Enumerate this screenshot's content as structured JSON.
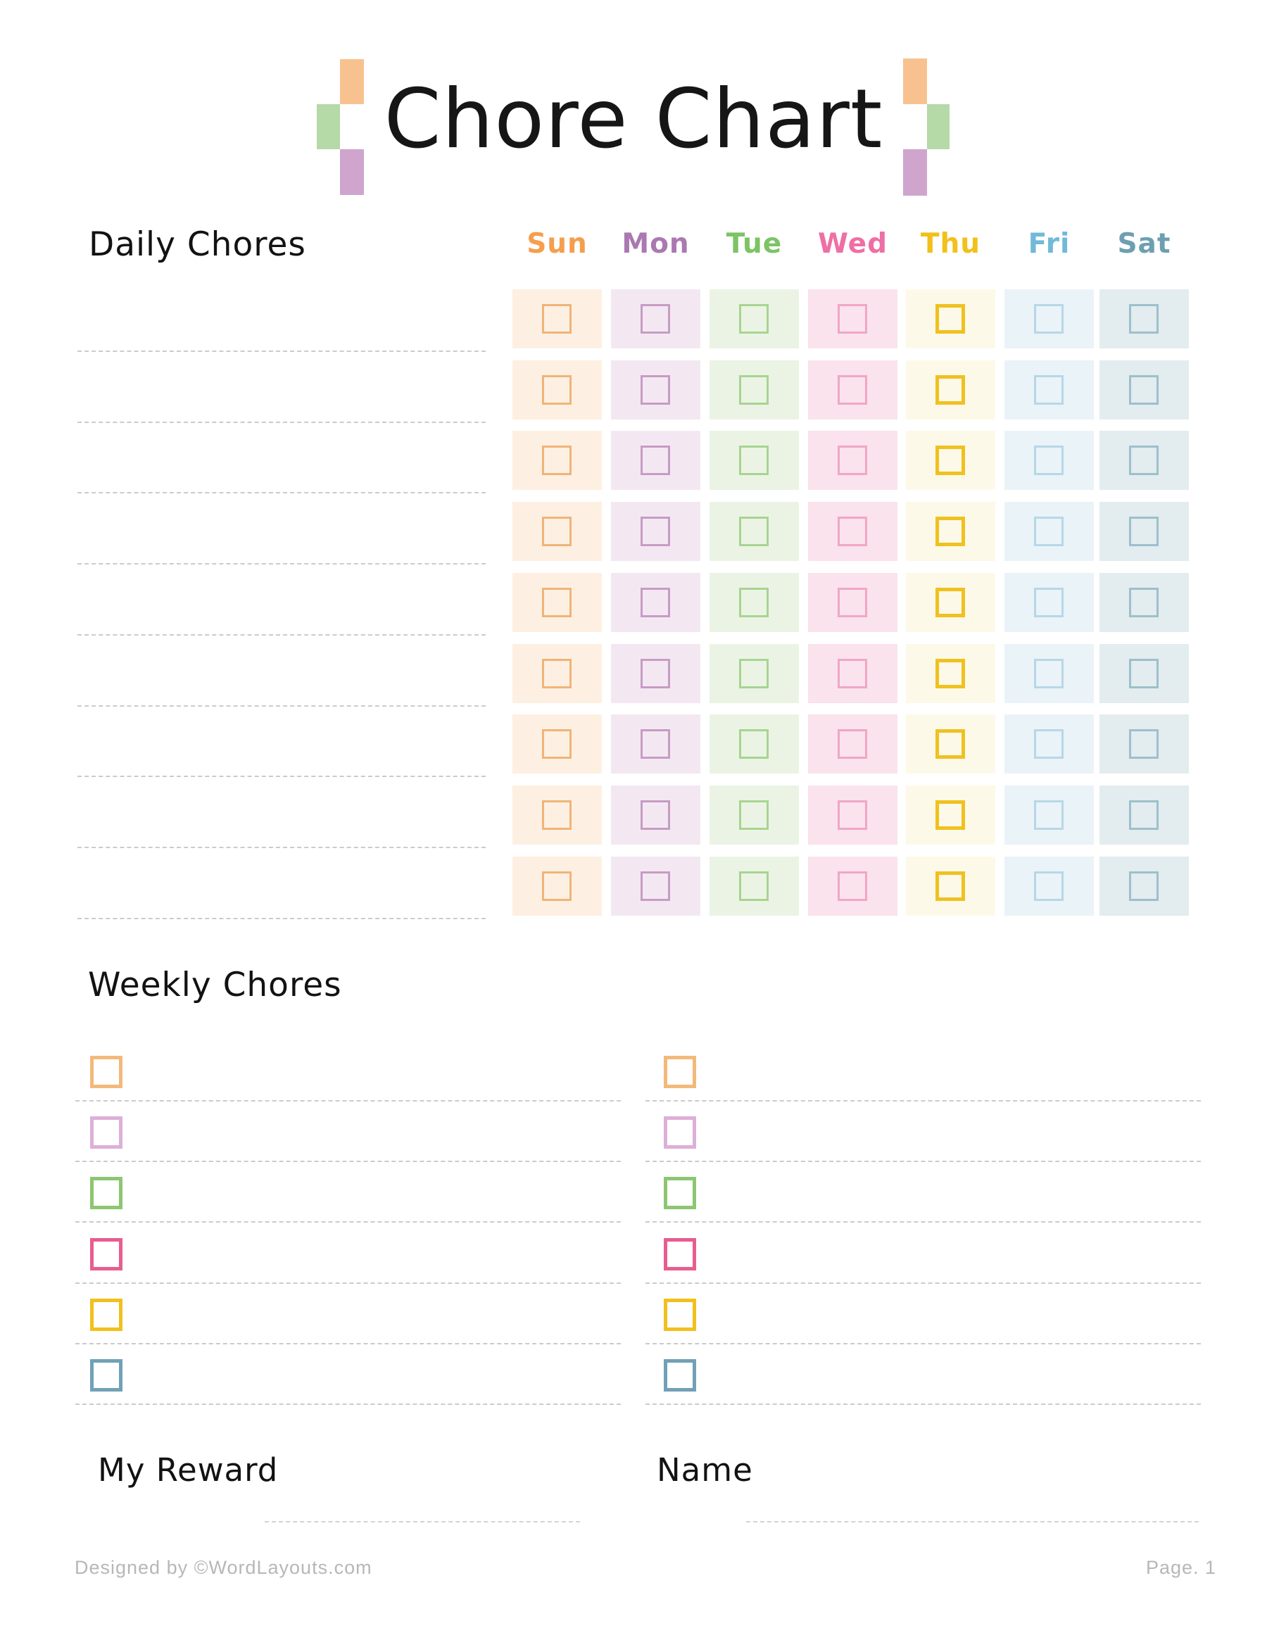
{
  "title": {
    "text": "Chore Chart"
  },
  "decoration": {
    "orange": "#f7c28f",
    "green": "#b5d9a7",
    "purple": "#cfa5cd"
  },
  "daily": {
    "heading": "Daily Chores",
    "num_blank_lines": 9,
    "num_rows": 9,
    "days": [
      {
        "label": "Sun",
        "label_color": "#f59e4e",
        "cell_bg": "#fdf0e2",
        "box_color": "#f0b478",
        "bold_box": false
      },
      {
        "label": "Mon",
        "label_color": "#aa79b1",
        "cell_bg": "#f3e8f2",
        "box_color": "#c89bc5",
        "bold_box": false
      },
      {
        "label": "Tue",
        "label_color": "#7cc464",
        "cell_bg": "#ebf4e4",
        "box_color": "#a8d492",
        "bold_box": false
      },
      {
        "label": "Wed",
        "label_color": "#ee6fa5",
        "cell_bg": "#fae3ec",
        "box_color": "#f1a6c6",
        "bold_box": false
      },
      {
        "label": "Thu",
        "label_color": "#f2c01b",
        "cell_bg": "#fdf9e9",
        "box_color": "#f0c11f",
        "bold_box": true
      },
      {
        "label": "Fri",
        "label_color": "#72b9d9",
        "cell_bg": "#eaf3f8",
        "box_color": "#b7d7e6",
        "bold_box": false
      },
      {
        "label": "Sat",
        "label_color": "#6d9fb1",
        "cell_bg": "#e3ecef",
        "box_color": "#9dc0cb",
        "bold_box": false
      }
    ]
  },
  "weekly": {
    "heading": "Weekly Chores",
    "columns": 2,
    "rows_per_column": 6,
    "box_colors": [
      "#f3b97a",
      "#ddafd9",
      "#8dc672",
      "#e85d8f",
      "#f2c01c",
      "#70a1b7"
    ]
  },
  "fields": {
    "reward_label": "My Reward",
    "name_label": "Name"
  },
  "footer": {
    "left": "Designed by ©WordLayouts.com",
    "right": "Page. 1"
  }
}
